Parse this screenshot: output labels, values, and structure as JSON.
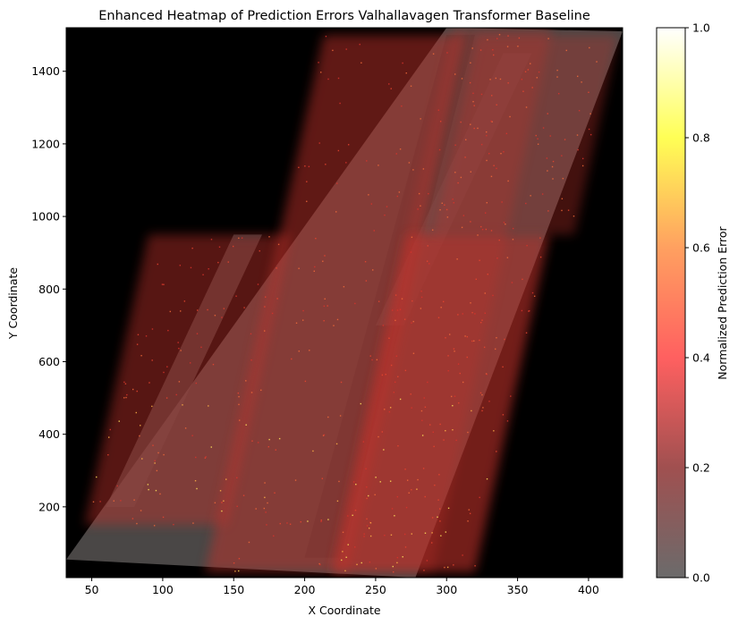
{
  "chart_data": {
    "type": "heatmap",
    "title": "Enhanced Heatmap of Prediction Errors Valhallavagen Transformer Baseline",
    "xlabel": "X Coordinate",
    "ylabel": "Y Coordinate",
    "xlim": [
      32,
      424
    ],
    "ylim": [
      5,
      1520
    ],
    "xticks": [
      50,
      100,
      150,
      200,
      250,
      300,
      350,
      400
    ],
    "yticks": [
      200,
      400,
      600,
      800,
      1000,
      1200,
      1400
    ],
    "grid": false,
    "background": "#000000",
    "colorbar": {
      "label": "Normalized Prediction Error",
      "range": [
        0,
        1
      ],
      "ticks": [
        0.0,
        0.2,
        0.4,
        0.6,
        0.8,
        1.0
      ],
      "tick_labels": [
        "0.0",
        "0.2",
        "0.4",
        "0.6",
        "0.8",
        "1.0"
      ],
      "colors": [
        "#6b6b6b",
        "#a05050",
        "#ff6060",
        "#ffa060",
        "#ffff55",
        "#ffffff"
      ]
    },
    "underlay": {
      "description": "grey aerial road image (parallelogram)",
      "corners": [
        [
          32,
          55
        ],
        [
          278,
          5
        ],
        [
          424,
          1510
        ],
        [
          300,
          1520
        ]
      ]
    },
    "heat_bands": [
      {
        "x": [
          45,
          145
        ],
        "y": [
          150,
          950
        ],
        "intensity": 0.45
      },
      {
        "x": [
          130,
          230
        ],
        "y": [
          20,
          1500
        ],
        "intensity": 0.5
      },
      {
        "x": [
          220,
          290
        ],
        "y": [
          20,
          1520
        ],
        "intensity": 0.3
      },
      {
        "x": [
          220,
          320
        ],
        "y": [
          20,
          950
        ],
        "intensity": 0.6
      },
      {
        "x": [
          290,
          390
        ],
        "y": [
          950,
          1500
        ],
        "intensity": 0.35
      }
    ]
  }
}
